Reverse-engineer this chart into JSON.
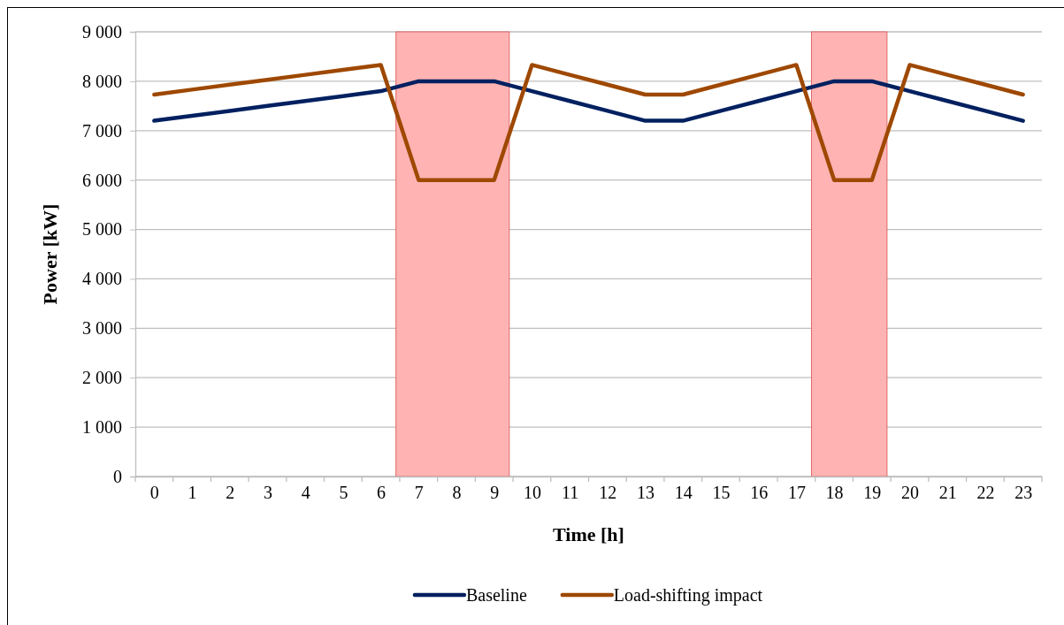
{
  "chart_data": {
    "type": "line",
    "xlabel": "Time [h]",
    "ylabel": "Power [kW]",
    "x": [
      0,
      1,
      2,
      3,
      4,
      5,
      6,
      7,
      8,
      9,
      10,
      11,
      12,
      13,
      14,
      15,
      16,
      17,
      18,
      19,
      20,
      21,
      22,
      23
    ],
    "xlim": [
      -0.5,
      23.5
    ],
    "xticks": [
      0,
      1,
      2,
      3,
      4,
      5,
      6,
      7,
      8,
      9,
      10,
      11,
      12,
      13,
      14,
      15,
      16,
      17,
      18,
      19,
      20,
      21,
      22,
      23
    ],
    "ylim": [
      0,
      9000
    ],
    "yticks": [
      {
        "value": 0,
        "label": "0"
      },
      {
        "value": 1000,
        "label": "1 000"
      },
      {
        "value": 2000,
        "label": "2 000"
      },
      {
        "value": 3000,
        "label": "3 000"
      },
      {
        "value": 4000,
        "label": "4 000"
      },
      {
        "value": 5000,
        "label": "5 000"
      },
      {
        "value": 6000,
        "label": "6 000"
      },
      {
        "value": 7000,
        "label": "7 000"
      },
      {
        "value": 8000,
        "label": "8 000"
      },
      {
        "value": 9000,
        "label": "9 000"
      }
    ],
    "grid": "y",
    "legend": "bottom",
    "marker": "none",
    "line_style": "solid",
    "bands": [
      {
        "axis": "x",
        "from": 6.4,
        "to": 9.4,
        "color": "#ffb3b3"
      },
      {
        "axis": "x",
        "from": 17.4,
        "to": 19.4,
        "color": "#ffb3b3"
      }
    ],
    "series": [
      {
        "name": "Baseline",
        "color": "#002060",
        "values": [
          7200,
          7300,
          7400,
          7500,
          7600,
          7700,
          7800,
          8000,
          8000,
          8000,
          7800,
          7600,
          7400,
          7200,
          7200,
          7400,
          7600,
          7800,
          8000,
          8000,
          7800,
          7600,
          7400,
          7200
        ]
      },
      {
        "name": "Load-shifting impact",
        "color": "#9e4800",
        "values": [
          7730,
          7830,
          7930,
          8030,
          8130,
          8230,
          8330,
          6000,
          6000,
          6000,
          8330,
          8130,
          7930,
          7730,
          7730,
          7930,
          8130,
          8330,
          6000,
          6000,
          8330,
          8130,
          7930,
          7730
        ]
      }
    ]
  }
}
